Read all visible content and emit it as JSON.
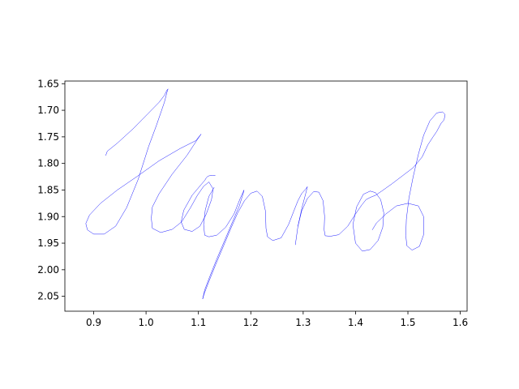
{
  "chart_data": {
    "type": "line",
    "title": "",
    "xlabel": "",
    "ylabel": "",
    "xlim": [
      0.845,
      1.613
    ],
    "ylim": [
      2.078,
      1.645
    ],
    "y_inverted": true,
    "grid": false,
    "legend": "none",
    "x_ticks": [
      0.9,
      1.0,
      1.1,
      1.2,
      1.3,
      1.4,
      1.5,
      1.6
    ],
    "x_tick_labels": [
      "0.9",
      "1.0",
      "1.1",
      "1.2",
      "1.3",
      "1.4",
      "1.5",
      "1.6"
    ],
    "y_ticks": [
      1.65,
      1.7,
      1.75,
      1.8,
      1.85,
      1.9,
      1.95,
      2.0,
      2.05
    ],
    "y_tick_labels": [
      "1.65",
      "1.70",
      "1.75",
      "1.80",
      "1.85",
      "1.90",
      "1.95",
      "2.00",
      "2.05"
    ],
    "series_color": "#0000ff",
    "series": [
      {
        "x": [
          0.923,
          0.926,
          0.945,
          0.975,
          1.003,
          1.025,
          1.035,
          1.04,
          1.042,
          1.04,
          1.035,
          1.02,
          1.005,
          0.985,
          0.963,
          0.942,
          0.92,
          0.9,
          0.888,
          0.885,
          0.892,
          0.913,
          0.945,
          0.982,
          1.025,
          1.065,
          1.095,
          1.105
        ],
        "y": [
          1.785,
          1.777,
          1.762,
          1.735,
          1.707,
          1.685,
          1.672,
          1.662,
          1.66,
          1.666,
          1.685,
          1.728,
          1.768,
          1.83,
          1.883,
          1.918,
          1.933,
          1.933,
          1.925,
          1.913,
          1.897,
          1.875,
          1.85,
          1.825,
          1.795,
          1.772,
          1.757,
          1.745
        ]
      },
      {
        "x": [
          1.105,
          1.098,
          1.078,
          1.05,
          1.025,
          1.012,
          1.01,
          1.012,
          1.028,
          1.05,
          1.068,
          1.085,
          1.098,
          1.11,
          1.12,
          1.128,
          1.125,
          1.115,
          1.103,
          1.088,
          1.073,
          1.067,
          1.072,
          1.088,
          1.105,
          1.112,
          1.115,
          1.118,
          1.122,
          1.128,
          1.132
        ],
        "y": [
          1.745,
          1.755,
          1.785,
          1.82,
          1.857,
          1.882,
          1.903,
          1.922,
          1.93,
          1.924,
          1.91,
          1.883,
          1.86,
          1.843,
          1.835,
          1.848,
          1.868,
          1.895,
          1.918,
          1.928,
          1.924,
          1.91,
          1.888,
          1.86,
          1.84,
          1.832,
          1.827,
          1.824,
          1.823,
          1.823,
          1.823
        ]
      },
      {
        "x": [
          1.13,
          1.12,
          1.113,
          1.11,
          1.112,
          1.12,
          1.135,
          1.152,
          1.168,
          1.18,
          1.187,
          1.186,
          1.178,
          1.165,
          1.15,
          1.135,
          1.122,
          1.112,
          1.108,
          1.111,
          1.12,
          1.133,
          1.148,
          1.162,
          1.175,
          1.188,
          1.2,
          1.212,
          1.222,
          1.228,
          1.229,
          1.232,
          1.242,
          1.258,
          1.272,
          1.282,
          1.29,
          1.297,
          1.305,
          1.308
        ],
        "y": [
          1.845,
          1.862,
          1.888,
          1.915,
          1.935,
          1.938,
          1.935,
          1.92,
          1.895,
          1.865,
          1.85,
          1.855,
          1.88,
          1.91,
          1.945,
          1.98,
          2.012,
          2.038,
          2.055,
          2.045,
          2.022,
          1.99,
          1.955,
          1.922,
          1.893,
          1.87,
          1.856,
          1.852,
          1.862,
          1.89,
          1.922,
          1.938,
          1.945,
          1.94,
          1.915,
          1.89,
          1.87,
          1.857,
          1.848,
          1.844
        ]
      },
      {
        "x": [
          1.308,
          1.305,
          1.298,
          1.29,
          1.285
        ],
        "y": [
          1.844,
          1.856,
          1.882,
          1.918,
          1.953
        ]
      },
      {
        "x": [
          1.29,
          1.297,
          1.308,
          1.32,
          1.33,
          1.338,
          1.341,
          1.34,
          1.342,
          1.352,
          1.368,
          1.385,
          1.4,
          1.412,
          1.42,
          1.428,
          1.438,
          1.45,
          1.47,
          1.49,
          1.51,
          1.527,
          1.538,
          1.548,
          1.555,
          1.563,
          1.569,
          1.571,
          1.566,
          1.555,
          1.542,
          1.53,
          1.52,
          1.51,
          1.502,
          1.497,
          1.496,
          1.498,
          1.508,
          1.522,
          1.53,
          1.53,
          1.52,
          1.5,
          1.478,
          1.458,
          1.44,
          1.432
        ],
        "y": [
          1.918,
          1.89,
          1.866,
          1.853,
          1.854,
          1.87,
          1.9,
          1.925,
          1.936,
          1.937,
          1.934,
          1.918,
          1.895,
          1.878,
          1.868,
          1.864,
          1.86,
          1.852,
          1.838,
          1.823,
          1.808,
          1.788,
          1.765,
          1.75,
          1.74,
          1.725,
          1.718,
          1.708,
          1.703,
          1.705,
          1.72,
          1.747,
          1.783,
          1.825,
          1.865,
          1.905,
          1.935,
          1.955,
          1.963,
          1.956,
          1.934,
          1.9,
          1.88,
          1.875,
          1.88,
          1.895,
          1.912,
          1.925
        ]
      },
      {
        "x": [
          1.428,
          1.415,
          1.402,
          1.395,
          1.4,
          1.413,
          1.428,
          1.443,
          1.452,
          1.454,
          1.448,
          1.438,
          1.428
        ],
        "y": [
          1.852,
          1.858,
          1.882,
          1.915,
          1.95,
          1.965,
          1.962,
          1.945,
          1.92,
          1.893,
          1.868,
          1.855,
          1.852
        ]
      }
    ]
  }
}
